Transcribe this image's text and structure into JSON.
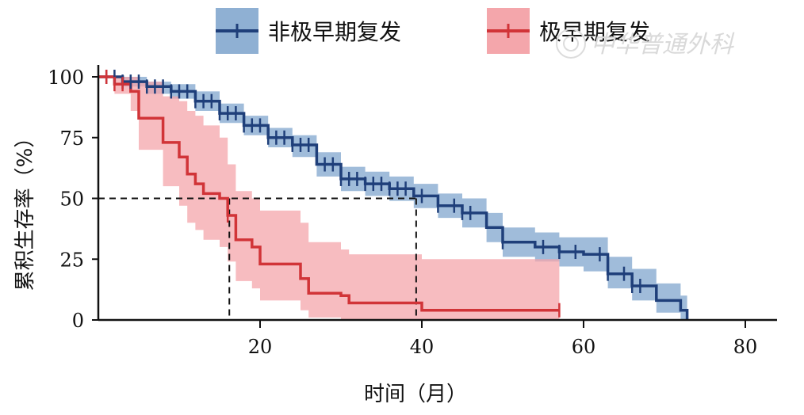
{
  "chart_data": {
    "type": "line",
    "subtype": "kaplan-meier",
    "title": "",
    "xlabel": "时间（月）",
    "ylabel": "累积生存率（%）",
    "xlim": [
      0,
      83
    ],
    "ylim": [
      0,
      100
    ],
    "xticks": [
      20,
      40,
      60,
      80
    ],
    "yticks": [
      0,
      25,
      50,
      75,
      100
    ],
    "legend_position": "top",
    "watermark": "中华普通外科",
    "reference_lines": [
      {
        "y": 50,
        "x_end": 39.3
      },
      {
        "x": 16.2,
        "y_end": 50
      },
      {
        "x": 39.3,
        "y_end": 50
      }
    ],
    "series": [
      {
        "name": "非极早期复发",
        "color": "#1f3f7a",
        "ci_color": "#8fb0d3",
        "x": [
          0,
          3,
          6,
          9,
          12,
          15,
          18,
          21,
          24,
          27,
          30,
          33,
          36,
          39,
          42,
          45,
          48,
          50,
          54,
          57,
          60,
          63,
          66,
          69,
          72,
          72.8
        ],
        "y": [
          100,
          98,
          96,
          94,
          90,
          85,
          80,
          75,
          72,
          64,
          58,
          56,
          54,
          51,
          47,
          44,
          38,
          32,
          30,
          28,
          27,
          19,
          14,
          8,
          4,
          0
        ],
        "ci_upper": [
          100,
          100,
          98,
          97,
          94,
          89,
          84,
          79,
          76,
          69,
          63,
          61,
          59,
          56,
          52,
          50,
          44,
          38,
          36,
          34,
          34,
          26,
          21,
          15,
          10,
          5
        ],
        "ci_lower": [
          100,
          96,
          93,
          91,
          86,
          81,
          76,
          71,
          67,
          59,
          53,
          51,
          49,
          46,
          42,
          38,
          32,
          26,
          24,
          22,
          20,
          13,
          8,
          3,
          0,
          0
        ],
        "censor_x": [
          1,
          2,
          3,
          4,
          5,
          6,
          7,
          8,
          9,
          10,
          11,
          12,
          13,
          14,
          15,
          16,
          17,
          18,
          19,
          20,
          21,
          22,
          23,
          24,
          25,
          26,
          28,
          29,
          30,
          31,
          32,
          33,
          34,
          35,
          36,
          37,
          38,
          40,
          42,
          44,
          45,
          46,
          50,
          55,
          57,
          59,
          62,
          63,
          65,
          66,
          67
        ]
      },
      {
        "name": "极早期复发",
        "color": "#d13438",
        "ci_color": "#f4a6ab",
        "x": [
          0,
          2,
          4,
          5,
          8,
          10,
          11,
          12,
          13,
          15,
          16,
          17,
          19,
          20,
          25,
          26,
          30,
          31,
          39,
          40,
          57
        ],
        "y": [
          100,
          97,
          94,
          83,
          73,
          67,
          60,
          56,
          52,
          50,
          43,
          33,
          30,
          23,
          17,
          11,
          10,
          7,
          7,
          4,
          4
        ],
        "ci_upper": [
          100,
          100,
          100,
          98,
          92,
          90,
          86,
          84,
          80,
          75,
          64,
          53,
          50,
          45,
          40,
          32,
          29,
          27,
          27,
          25,
          25
        ],
        "ci_lower": [
          100,
          93,
          86,
          70,
          55,
          47,
          40,
          37,
          33,
          30,
          24,
          16,
          13,
          8,
          4,
          1,
          0,
          0,
          0,
          0,
          0
        ],
        "censor_x": [
          1,
          2,
          3,
          16,
          57
        ]
      }
    ]
  }
}
